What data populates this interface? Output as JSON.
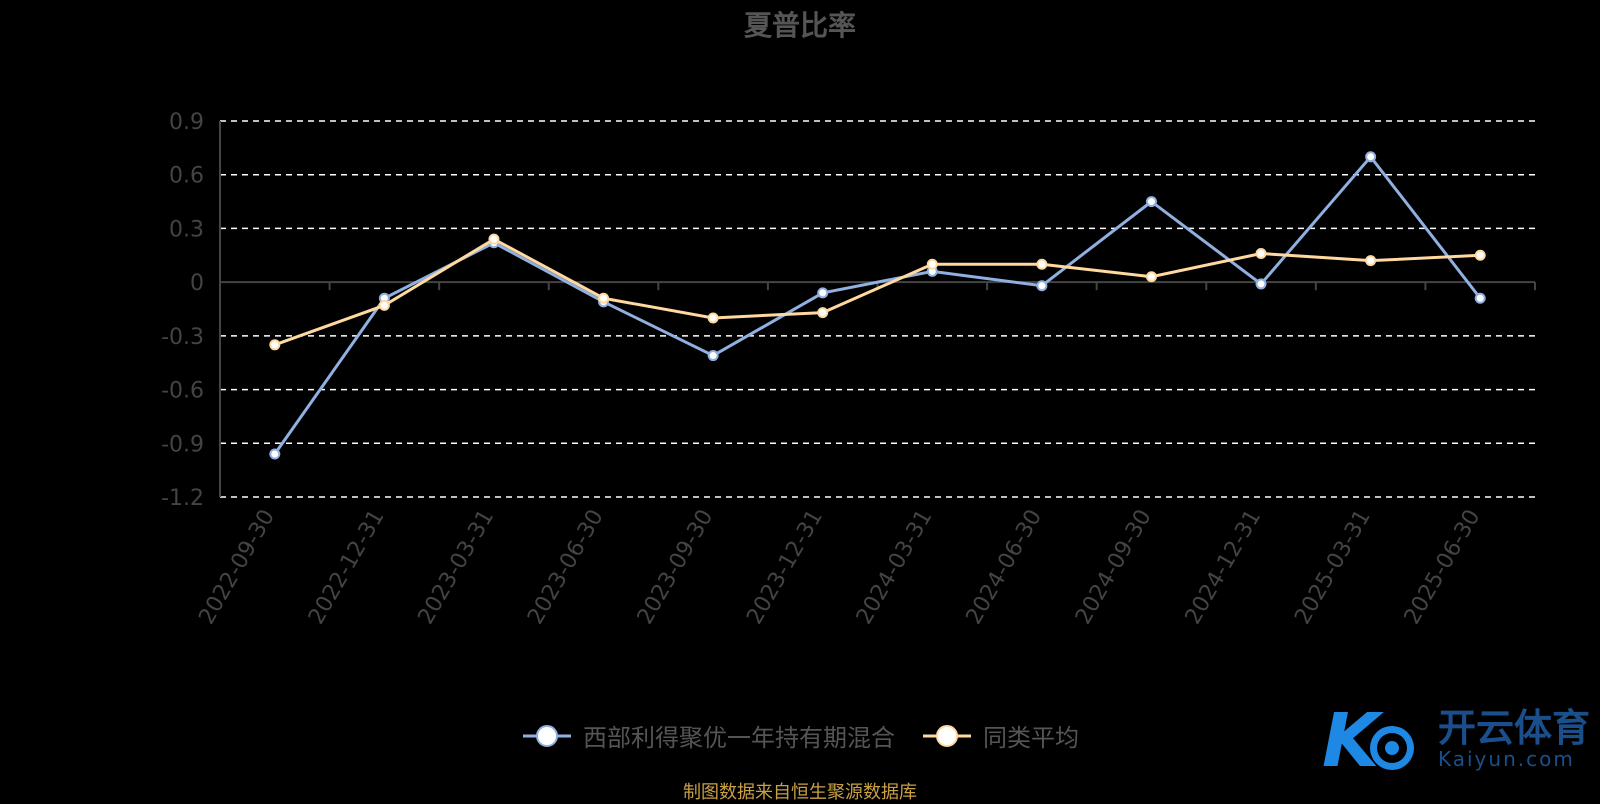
{
  "title": "夏普比率",
  "source_note": "制图数据来自恒生聚源数据库",
  "watermark": {
    "cn": "开云体育",
    "en": "Kaiyun.com",
    "badge": "K"
  },
  "colors": {
    "series1": "#8fb0e0",
    "series2": "#ffd9a0",
    "grid": "#ffffff",
    "axis": "#444444"
  },
  "chart_data": {
    "type": "line",
    "title": "夏普比率",
    "x": [
      "2022-09-30",
      "2022-12-31",
      "2023-03-31",
      "2023-06-30",
      "2023-09-30",
      "2023-12-31",
      "2024-03-31",
      "2024-06-30",
      "2024-09-30",
      "2024-12-31",
      "2025-03-31",
      "2025-06-30"
    ],
    "ylim": [
      -1.2,
      0.9
    ],
    "yticks": [
      "0.9",
      "0.6",
      "0.3",
      "0",
      "-0.3",
      "-0.6",
      "-0.9",
      "-1.2"
    ],
    "grid": true,
    "legend": "bottom-center",
    "series": [
      {
        "name": "西部利得聚优一年持有期混合",
        "values": [
          -0.96,
          -0.09,
          0.22,
          -0.11,
          -0.41,
          -0.06,
          0.06,
          -0.02,
          0.45,
          -0.01,
          0.7,
          -0.09
        ]
      },
      {
        "name": "同类平均",
        "values": [
          -0.35,
          -0.13,
          0.24,
          -0.09,
          -0.2,
          -0.17,
          0.1,
          0.1,
          0.03,
          0.16,
          0.12,
          0.15
        ]
      }
    ]
  }
}
